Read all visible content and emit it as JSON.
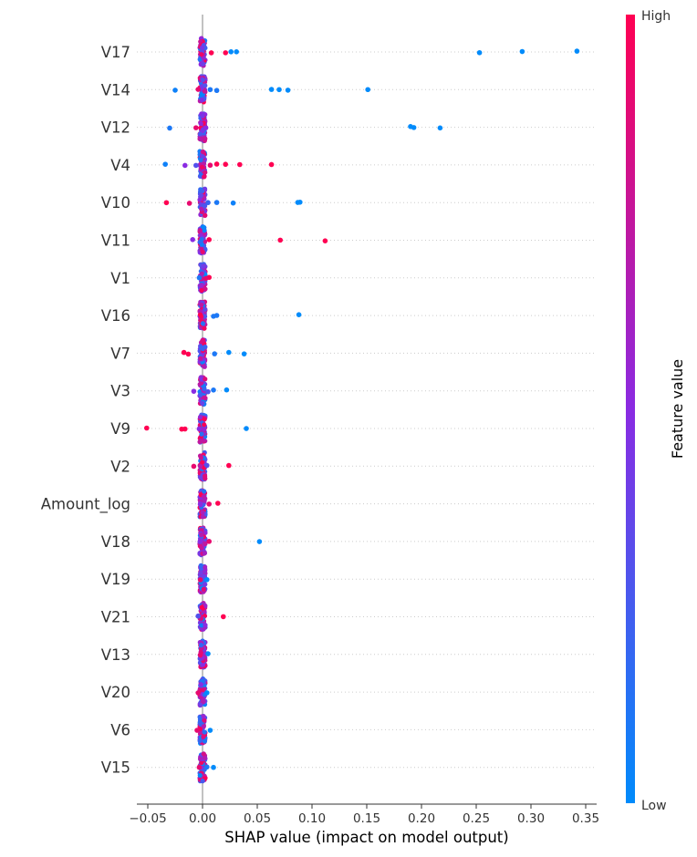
{
  "chart_data": {
    "type": "scatter",
    "xlabel": "SHAP value (impact on model output)",
    "xlim": [
      -0.06,
      0.36
    ],
    "xticks": [
      -0.05,
      0.0,
      0.05,
      0.1,
      0.15,
      0.2,
      0.25,
      0.3,
      0.35
    ],
    "xtick_labels": [
      "−0.05",
      "0.00",
      "0.05",
      "0.10",
      "0.15",
      "0.20",
      "0.25",
      "0.30",
      "0.35"
    ],
    "features": [
      "V17",
      "V14",
      "V12",
      "V4",
      "V10",
      "V11",
      "V1",
      "V16",
      "V7",
      "V3",
      "V9",
      "V2",
      "Amount_log",
      "V18",
      "V19",
      "V21",
      "V13",
      "V20",
      "V6",
      "V15"
    ],
    "colorbar": {
      "title": "Feature value",
      "high_label": "High",
      "low_label": "Low",
      "high_color": "#ff0052",
      "mid_color": "#8a2be2",
      "low_color": "#008bfb"
    },
    "grid": "dotted horizontal",
    "points": {
      "V17": [
        [
          0.253,
          0.0
        ],
        [
          0.292,
          0.0
        ],
        [
          0.342,
          0.0
        ],
        [
          0.026,
          0.0
        ],
        [
          0.031,
          0.0
        ],
        [
          0.021,
          1.0
        ],
        [
          0.008,
          1.0
        ]
      ],
      "V14": [
        [
          0.151,
          0.0
        ],
        [
          0.078,
          0.0
        ],
        [
          0.07,
          0.0
        ],
        [
          0.063,
          0.0
        ],
        [
          -0.025,
          0.05
        ],
        [
          0.013,
          0.1
        ],
        [
          0.007,
          0.1
        ],
        [
          -0.004,
          0.9
        ]
      ],
      "V12": [
        [
          0.217,
          0.0
        ],
        [
          0.19,
          0.0
        ],
        [
          0.193,
          0.0
        ],
        [
          -0.03,
          0.1
        ],
        [
          -0.006,
          0.9
        ],
        [
          0.003,
          0.5
        ]
      ],
      "V4": [
        [
          0.063,
          1.0
        ],
        [
          0.034,
          1.0
        ],
        [
          0.021,
          1.0
        ],
        [
          0.013,
          1.0
        ],
        [
          -0.016,
          0.5
        ],
        [
          -0.034,
          0.05
        ],
        [
          -0.006,
          0.3
        ],
        [
          0.007,
          0.9
        ]
      ],
      "V10": [
        [
          0.087,
          0.0
        ],
        [
          0.089,
          0.0
        ],
        [
          0.028,
          0.05
        ],
        [
          0.013,
          0.1
        ],
        [
          -0.033,
          1.0
        ],
        [
          -0.012,
          0.9
        ],
        [
          0.005,
          0.2
        ]
      ],
      "V11": [
        [
          0.112,
          1.0
        ],
        [
          0.071,
          1.0
        ],
        [
          0.006,
          1.0
        ],
        [
          -0.009,
          0.5
        ]
      ],
      "V1": [
        [
          0.006,
          1.0
        ],
        [
          0.003,
          0.9
        ],
        [
          -0.003,
          0.1
        ]
      ],
      "V16": [
        [
          0.088,
          0.0
        ],
        [
          0.013,
          0.1
        ],
        [
          0.01,
          0.1
        ],
        [
          -0.002,
          1.0
        ]
      ],
      "V7": [
        [
          0.038,
          0.0
        ],
        [
          0.024,
          0.0
        ],
        [
          0.011,
          0.1
        ],
        [
          -0.013,
          1.0
        ],
        [
          -0.017,
          1.0
        ]
      ],
      "V3": [
        [
          0.022,
          0.0
        ],
        [
          0.01,
          0.1
        ],
        [
          -0.008,
          0.5
        ],
        [
          0.005,
          0.3
        ]
      ],
      "V9": [
        [
          0.04,
          0.0
        ],
        [
          -0.051,
          1.0
        ],
        [
          -0.019,
          1.0
        ],
        [
          -0.016,
          1.0
        ],
        [
          -0.003,
          0.5
        ]
      ],
      "V2": [
        [
          0.024,
          1.0
        ],
        [
          -0.008,
          0.9
        ],
        [
          0.004,
          0.3
        ]
      ],
      "Amount_log": [
        [
          0.014,
          1.0
        ],
        [
          0.006,
          0.9
        ],
        [
          -0.002,
          0.5
        ]
      ],
      "V18": [
        [
          0.052,
          0.0
        ],
        [
          0.006,
          0.9
        ],
        [
          -0.002,
          0.5
        ]
      ],
      "V19": [
        [
          0.004,
          0.0
        ],
        [
          -0.002,
          0.9
        ]
      ],
      "V21": [
        [
          0.019,
          1.0
        ],
        [
          -0.004,
          0.3
        ]
      ],
      "V13": [
        [
          0.005,
          0.0
        ],
        [
          -0.002,
          0.9
        ]
      ],
      "V20": [
        [
          0.004,
          0.0
        ],
        [
          -0.004,
          0.9
        ]
      ],
      "V6": [
        [
          0.007,
          0.0
        ],
        [
          -0.005,
          0.9
        ]
      ],
      "V15": [
        [
          0.01,
          0.0
        ],
        [
          0.004,
          0.1
        ],
        [
          -0.003,
          0.9
        ]
      ]
    }
  }
}
